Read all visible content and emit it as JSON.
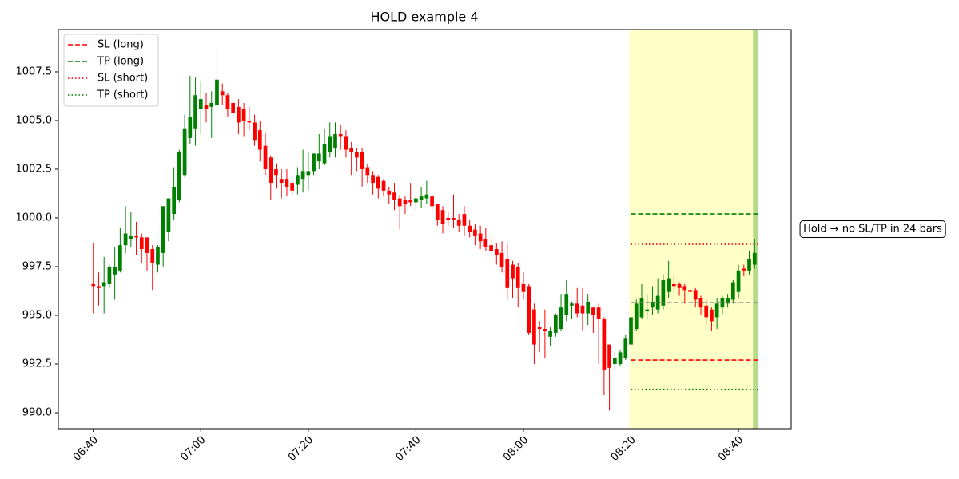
{
  "chart_data": {
    "type": "candlestick",
    "title": "HOLD example 4",
    "x": [
      "06:40",
      "06:41",
      "06:42",
      "06:43",
      "06:44",
      "06:45",
      "06:46",
      "06:47",
      "06:48",
      "06:49",
      "06:50",
      "06:51",
      "06:52",
      "06:53",
      "06:54",
      "06:55",
      "06:56",
      "06:57",
      "06:58",
      "06:59",
      "07:00",
      "07:01",
      "07:02",
      "07:03",
      "07:04",
      "07:05",
      "07:06",
      "07:07",
      "07:08",
      "07:09",
      "07:10",
      "07:11",
      "07:12",
      "07:13",
      "07:14",
      "07:15",
      "07:16",
      "07:17",
      "07:18",
      "07:19",
      "07:20",
      "07:21",
      "07:22",
      "07:23",
      "07:24",
      "07:25",
      "07:26",
      "07:27",
      "07:28",
      "07:29",
      "07:30",
      "07:31",
      "07:32",
      "07:33",
      "07:34",
      "07:35",
      "07:36",
      "07:37",
      "07:38",
      "07:39",
      "07:40",
      "07:41",
      "07:42",
      "07:43",
      "07:44",
      "07:45",
      "07:46",
      "07:47",
      "07:48",
      "07:49",
      "07:50",
      "07:51",
      "07:52",
      "07:53",
      "07:54",
      "07:55",
      "07:56",
      "07:57",
      "07:58",
      "07:59",
      "08:00",
      "08:01",
      "08:02",
      "08:03",
      "08:04",
      "08:05",
      "08:06",
      "08:07",
      "08:08",
      "08:09",
      "08:10",
      "08:11",
      "08:12",
      "08:13",
      "08:14",
      "08:15",
      "08:16",
      "08:17",
      "08:18",
      "08:19",
      "08:20",
      "08:21",
      "08:22",
      "08:23",
      "08:24",
      "08:25",
      "08:26",
      "08:27",
      "08:28",
      "08:29",
      "08:30",
      "08:31",
      "08:32",
      "08:33",
      "08:34",
      "08:35",
      "08:36",
      "08:37",
      "08:38",
      "08:39",
      "08:40",
      "08:41",
      "08:42",
      "08:43"
    ],
    "open": [
      996.6,
      996.5,
      996.5,
      996.6,
      997.1,
      997.3,
      998.6,
      998.9,
      999.1,
      999.0,
      999.0,
      998.4,
      997.6,
      998.2,
      999.3,
      1000.2,
      1000.9,
      1002.2,
      1004.1,
      1004.6,
      1005.6,
      1005.8,
      1005.7,
      1005.8,
      1006.5,
      1006.3,
      1005.9,
      1005.7,
      1005.6,
      1005.0,
      1004.9,
      1004.5,
      1003.7,
      1003.1,
      1002.5,
      1002.0,
      1002.0,
      1001.8,
      1001.7,
      1002.0,
      1002.2,
      1002.4,
      1002.9,
      1002.8,
      1003.4,
      1003.6,
      1004.3,
      1004.2,
      1003.6,
      1003.4,
      1003.4,
      1002.6,
      1002.2,
      1002.1,
      1001.9,
      1001.4,
      1001.3,
      1001.0,
      1000.9,
      1000.9,
      1000.8,
      1000.9,
      1001.0,
      1001.1,
      1000.7,
      1000.4,
      1000.0,
      1000.0,
      999.9,
      1000.2,
      999.6,
      999.4,
      999.2,
      998.9,
      998.6,
      998.4,
      998.2,
      997.9,
      997.6,
      997.5,
      996.6,
      996.5,
      995.3,
      994.4,
      994.3,
      993.9,
      994.1,
      994.3,
      995.0,
      995.5,
      995.6,
      995.5,
      995.1,
      995.4,
      995.4,
      994.8,
      993.5,
      992.5,
      992.5,
      992.8,
      993.5,
      994.3,
      994.9,
      995.2,
      995.4,
      995.3,
      995.5,
      996.2,
      996.6,
      996.6,
      996.5,
      996.3,
      996.3,
      995.9,
      995.5,
      995.3,
      994.9,
      995.4,
      995.6,
      995.8,
      996.2,
      997.4,
      997.3,
      997.6
    ],
    "high": [
      998.7,
      997.2,
      998.0,
      997.6,
      998.5,
      999.5,
      1000.6,
      1000.3,
      999.8,
      999.2,
      999.0,
      998.6,
      998.6,
      1000.6,
      1001.0,
      1002.6,
      1003.5,
      1005.3,
      1007.3,
      1007.2,
      1007.0,
      1006.4,
      1006.5,
      1008.7,
      1006.9,
      1006.4,
      1006.0,
      1006.1,
      1005.9,
      1005.7,
      1005.3,
      1005.0,
      1004.4,
      1003.2,
      1002.8,
      1002.5,
      1002.5,
      1001.9,
      1002.6,
      1003.5,
      1003.4,
      1003.3,
      1004.3,
      1004.6,
      1004.9,
      1004.9,
      1004.8,
      1004.5,
      1003.9,
      1003.6,
      1003.6,
      1002.8,
      1002.4,
      1002.2,
      1002.0,
      1001.6,
      1001.8,
      1001.2,
      1001.1,
      1001.8,
      1001.1,
      1001.6,
      1001.9,
      1001.2,
      1000.7,
      1000.6,
      1000.3,
      1001.2,
      1000.2,
      1000.6,
      999.9,
      999.7,
      999.6,
      999.5,
      999.0,
      998.7,
      998.8,
      998.7,
      997.8,
      997.7,
      997.2,
      996.6,
      995.6,
      994.7,
      995.3,
      994.4,
      995.1,
      996.1,
      996.8,
      995.7,
      996.4,
      996.4,
      996.1,
      995.4,
      995.6,
      994.9,
      993.5,
      993.1,
      993.2,
      994.0,
      995.1,
      995.8,
      996.6,
      996.1,
      996.5,
      996.9,
      997.1,
      997.8,
      997.0,
      996.7,
      996.6,
      996.4,
      996.4,
      996.0,
      995.8,
      995.4,
      995.9,
      996.0,
      996.1,
      996.8,
      997.6,
      997.6,
      998.3,
      998.9
    ],
    "low": [
      995.1,
      995.5,
      995.1,
      996.4,
      995.8,
      997.2,
      998.2,
      998.5,
      998.1,
      997.7,
      997.3,
      996.3,
      997.2,
      997.5,
      998.8,
      999.9,
      1000.8,
      1002.1,
      1003.8,
      1003.7,
      1004.3,
      1004.9,
      1004.1,
      1005.7,
      1005.8,
      1005.2,
      1005.1,
      1004.3,
      1004.2,
      1004.5,
      1003.7,
      1002.9,
      1002.2,
      1000.9,
      1001.5,
      1001.0,
      1001.1,
      1001.2,
      1001.2,
      1001.3,
      1001.4,
      1002.2,
      1002.5,
      1002.7,
      1003.1,
      1003.1,
      1003.5,
      1003.1,
      1002.2,
      1002.4,
      1001.6,
      1001.8,
      1001.2,
      1001.0,
      1001.1,
      1000.7,
      1000.4,
      999.4,
      1000.2,
      1000.6,
      1000.4,
      1000.5,
      1000.7,
      1000.3,
      999.6,
      999.2,
      999.6,
      999.5,
      999.3,
      999.1,
      999.0,
      998.6,
      998.4,
      998.3,
      998.0,
      997.6,
      997.2,
      995.8,
      995.9,
      995.4,
      995.8,
      994.0,
      992.5,
      993.1,
      992.8,
      993.4,
      993.9,
      994.2,
      994.7,
      994.8,
      994.9,
      994.2,
      994.5,
      994.1,
      992.5,
      990.9,
      990.1,
      992.2,
      992.4,
      992.7,
      993.4,
      994.2,
      994.8,
      994.8,
      995.0,
      995.1,
      995.3,
      995.9,
      996.2,
      996.0,
      995.6,
      995.9,
      995.4,
      995.0,
      994.5,
      994.2,
      994.3,
      995.0,
      995.4,
      995.6,
      995.9,
      997.0,
      997.1,
      997.4
    ],
    "close": [
      996.5,
      996.4,
      996.7,
      997.5,
      997.5,
      998.6,
      999.2,
      999.1,
      999.0,
      998.4,
      998.2,
      997.7,
      998.5,
      1000.6,
      1001.0,
      1001.6,
      1003.4,
      1004.6,
      1005.2,
      1006.3,
      1006.1,
      1005.6,
      1005.9,
      1007.1,
      1006.3,
      1005.6,
      1005.4,
      1004.9,
      1005.0,
      1004.9,
      1004.0,
      1003.5,
      1002.5,
      1001.8,
      1002.2,
      1001.8,
      1001.6,
      1001.4,
      1002.2,
      1002.4,
      1002.4,
      1003.3,
      1003.3,
      1003.8,
      1004.2,
      1004.3,
      1004.2,
      1003.5,
      1003.4,
      1003.1,
      1002.5,
      1002.2,
      1001.8,
      1001.5,
      1001.4,
      1001.2,
      1000.9,
      1000.6,
      1000.7,
      1000.8,
      1001.0,
      1001.1,
      1001.2,
      1000.6,
      999.9,
      999.7,
      999.9,
      999.9,
      999.6,
      999.6,
      999.3,
      999.1,
      998.8,
      998.5,
      998.3,
      998.1,
      997.5,
      996.4,
      996.9,
      996.4,
      996.2,
      994.1,
      993.5,
      994.3,
      994.2,
      994.2,
      995.0,
      995.4,
      996.1,
      995.6,
      995.1,
      995.1,
      995.7,
      995.0,
      994.8,
      992.2,
      992.3,
      992.8,
      993.1,
      993.8,
      994.9,
      995.6,
      995.9,
      995.3,
      995.7,
      996.0,
      996.8,
      996.9,
      996.5,
      996.4,
      996.3,
      996.2,
      995.8,
      995.4,
      994.9,
      994.7,
      995.6,
      995.9,
      995.9,
      996.7,
      997.3,
      997.3,
      997.9,
      998.2
    ],
    "up_color": "green",
    "down_color": "red",
    "xlim": [
      "06:33:30",
      "08:49:48"
    ],
    "xticks": [
      "06:40",
      "07:00",
      "07:20",
      "07:40",
      "08:00",
      "08:20",
      "08:40"
    ],
    "ylim": [
      989.18,
      1009.67
    ],
    "yticks": [
      {
        "value": 990,
        "label": "990.0"
      },
      992.5,
      {
        "value": 995,
        "label": "995.0"
      },
      997.5,
      {
        "value": 1000,
        "label": "1000.0"
      },
      1002.5,
      {
        "value": 1005,
        "label": "1005.0"
      },
      1007.5
    ],
    "levels": [
      {
        "name": "SL (long)",
        "value": 992.7,
        "color": "red",
        "style": "dashed"
      },
      {
        "name": "TP (long)",
        "value": 1000.2,
        "color": "green",
        "style": "dashed"
      },
      {
        "name": "SL (short)",
        "value": 998.65,
        "color": "red",
        "style": "dotted"
      },
      {
        "name": "TP (short)",
        "value": 991.2,
        "color": "green",
        "style": "dotted"
      },
      {
        "value": 995.65,
        "color": "gray",
        "style": "dashed"
      }
    ],
    "hold_window": {
      "start": "08:20",
      "end": "08:43",
      "color": "#ffffc8"
    },
    "exit_bar": {
      "x": "08:43",
      "color": "#b6d98c"
    },
    "annotation": "Hold → no SL/TP in 24 bars",
    "legend": "upper left"
  }
}
